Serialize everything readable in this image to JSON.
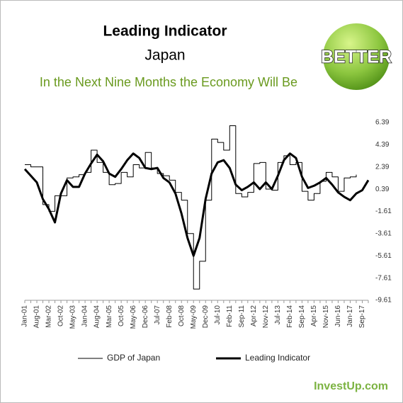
{
  "chart_data": {
    "type": "line",
    "title": "Leading Indicator",
    "subtitle": "Japan",
    "annotation": "In the Next Nine Months the Economy Will Be",
    "badge": "BETTER",
    "source": "InvestUp.com",
    "categories": [
      "Jan-01",
      null,
      "Aug-01",
      null,
      "Mar-02",
      null,
      "Oct-02",
      null,
      "May-03",
      null,
      "Jan-04",
      null,
      "Aug-04",
      null,
      "Mar-05",
      null,
      "Oct-05",
      null,
      "May-06",
      null,
      "Dec-06",
      null,
      "Jul-07",
      null,
      "Feb-08",
      null,
      "Oct-08",
      null,
      "May-09",
      null,
      "Dec-09",
      null,
      "Jul-10",
      null,
      "Feb-11",
      null,
      "Sep-11",
      null,
      "Apr-12",
      null,
      "Nov-12",
      null,
      "Jul-13",
      null,
      "Feb-14",
      null,
      "Sep-14",
      null,
      "Apr-15",
      null,
      "Nov-15",
      null,
      "Jun-16",
      null,
      "Jan-17",
      null,
      "Sep-17",
      null
    ],
    "series": [
      {
        "name": "GDP of Japan",
        "color": "#000000",
        "width": 1,
        "step": true,
        "values": [
          2.6,
          2.4,
          2.4,
          -1.0,
          -1.6,
          -0.2,
          -0.2,
          1.4,
          1.5,
          1.7,
          1.9,
          3.9,
          2.8,
          1.9,
          0.8,
          0.9,
          1.9,
          1.5,
          2.6,
          2.3,
          3.7,
          2.3,
          1.8,
          1.6,
          1.2,
          0.1,
          -0.6,
          -3.6,
          -8.6,
          -6.1,
          -0.6,
          4.9,
          4.6,
          3.9,
          6.1,
          0.0,
          -0.3,
          0.1,
          2.7,
          2.8,
          0.4,
          0.3,
          2.8,
          3.4,
          2.6,
          2.8,
          0.2,
          -0.6,
          0.0,
          1.1,
          1.9,
          1.5,
          0.2,
          1.4,
          1.5,
          1.7,
          null,
          null
        ]
      },
      {
        "name": "Leading Indicator",
        "color": "#000000",
        "width": 3,
        "step": false,
        "values": [
          2.2,
          1.6,
          1.0,
          -0.5,
          -1.4,
          -2.6,
          0.0,
          1.2,
          0.6,
          0.6,
          1.8,
          2.7,
          3.5,
          2.9,
          1.8,
          1.5,
          2.2,
          3.0,
          3.6,
          3.2,
          2.3,
          2.2,
          2.3,
          1.4,
          1.0,
          0.0,
          -1.8,
          -4.0,
          -5.6,
          -4.0,
          -0.5,
          1.8,
          2.8,
          3.0,
          2.3,
          0.8,
          0.3,
          0.6,
          1.0,
          0.4,
          1.0,
          0.4,
          1.6,
          3.0,
          3.6,
          3.2,
          1.5,
          0.5,
          0.7,
          1.0,
          1.4,
          0.8,
          0.1,
          -0.3,
          -0.6,
          0.0,
          0.3,
          1.2
        ]
      }
    ],
    "ylim": [
      -9.61,
      6.39
    ],
    "yticks": [
      6.39,
      4.39,
      2.39,
      0.39,
      -1.61,
      -3.61,
      -5.61,
      -7.61,
      -9.61
    ],
    "grid": false,
    "legend": "bottom"
  }
}
